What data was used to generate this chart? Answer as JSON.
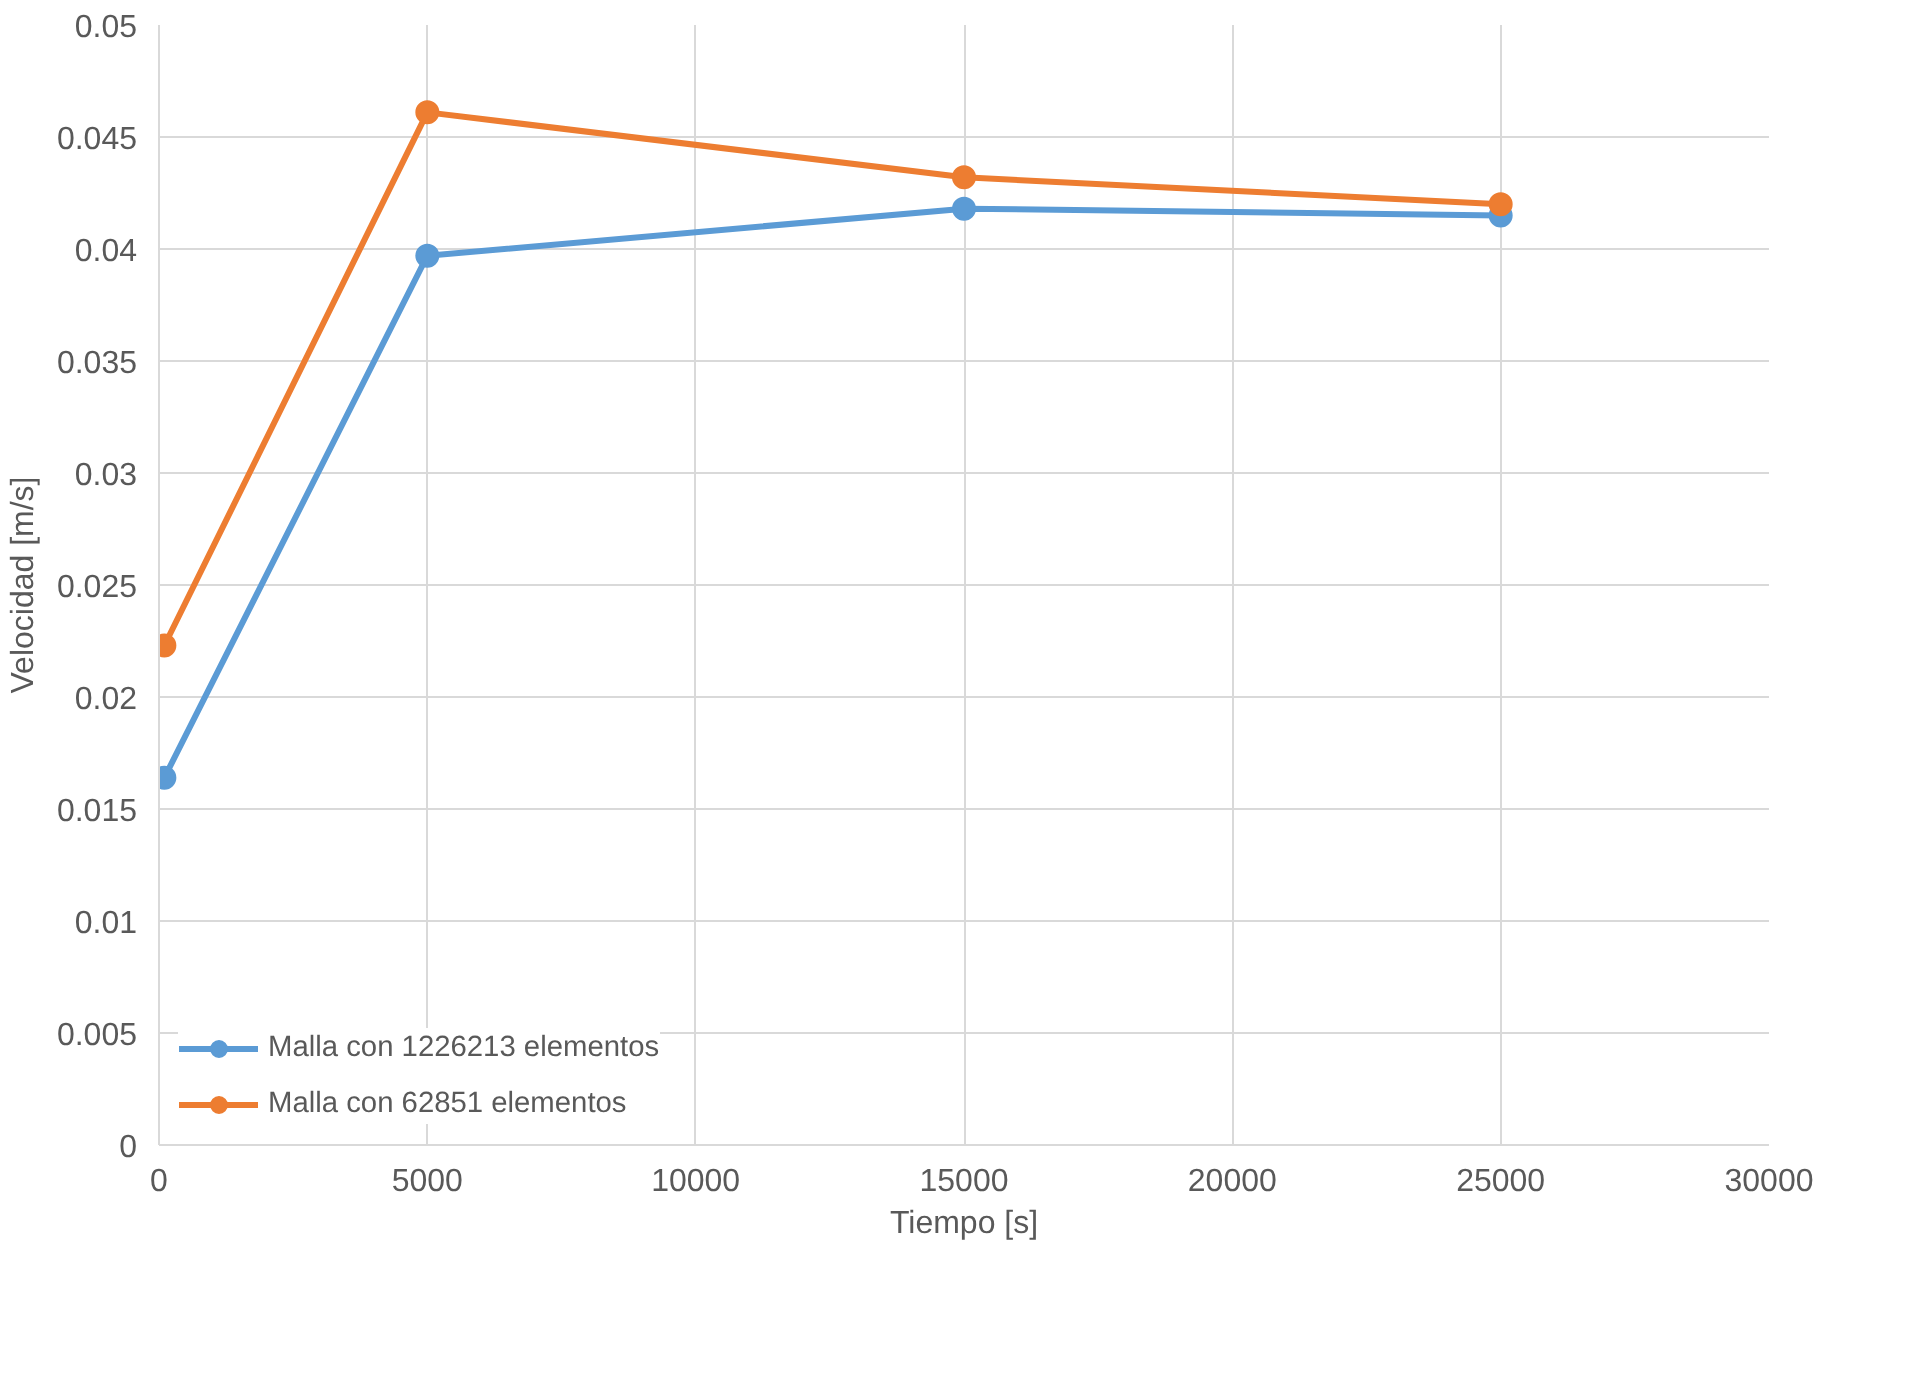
{
  "chart_data": {
    "type": "line",
    "xlabel": "Tiempo [s]",
    "ylabel": "Velocidad [m/s]",
    "x": [
      100,
      5000,
      15000,
      25000
    ],
    "series": [
      {
        "name": "Malla con 1226213 elementos",
        "color": "#5b9bd5",
        "values": [
          0.0164,
          0.0397,
          0.0418,
          0.0415
        ]
      },
      {
        "name": "Malla con 62851 elementos",
        "color": "#ed7d31",
        "values": [
          0.0223,
          0.0461,
          0.0432,
          0.042
        ]
      }
    ],
    "xlim": [
      0,
      30000
    ],
    "xticks": [
      0,
      5000,
      10000,
      15000,
      20000,
      25000,
      30000
    ],
    "ylim": [
      0,
      0.05
    ],
    "yticks": [
      0,
      0.005,
      0.01,
      0.015,
      0.02,
      0.025,
      0.03,
      0.035,
      0.04,
      0.045,
      0.05
    ],
    "grid": true,
    "legend": "bottom left",
    "marker": "circle",
    "line_style": "solid"
  }
}
